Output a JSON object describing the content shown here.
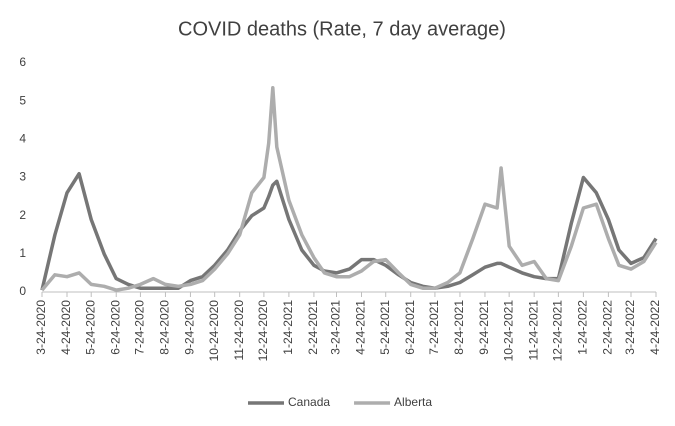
{
  "chart_data": {
    "type": "line",
    "title": "COVID deaths (Rate, 7 day average)",
    "x": [
      "3-24-2020",
      "4-9-2020",
      "4-24-2020",
      "5-9-2020",
      "5-24-2020",
      "6-9-2020",
      "6-24-2020",
      "7-9-2020",
      "7-24-2020",
      "8-9-2020",
      "8-24-2020",
      "9-9-2020",
      "9-24-2020",
      "10-9-2020",
      "10-24-2020",
      "11-9-2020",
      "11-24-2020",
      "12-9-2020",
      "12-24-2020",
      "12-30-2020",
      "1-4-2021",
      "1-9-2021",
      "1-24-2021",
      "2-9-2021",
      "2-24-2021",
      "3-9-2021",
      "3-24-2021",
      "4-9-2021",
      "4-24-2021",
      "5-9-2021",
      "5-24-2021",
      "6-9-2021",
      "6-24-2021",
      "7-9-2021",
      "7-24-2021",
      "8-9-2021",
      "8-24-2021",
      "9-9-2021",
      "9-24-2021",
      "10-9-2021",
      "10-14-2021",
      "10-24-2021",
      "11-9-2021",
      "11-24-2021",
      "12-9-2021",
      "12-24-2021",
      "1-9-2022",
      "1-24-2022",
      "2-9-2022",
      "2-24-2022",
      "3-9-2022",
      "3-24-2022",
      "4-9-2022",
      "4-24-2022"
    ],
    "series": [
      {
        "name": "Canada",
        "color": "#767676",
        "values": [
          0.05,
          1.5,
          2.6,
          3.1,
          1.9,
          1.0,
          0.35,
          0.2,
          0.1,
          0.1,
          0.1,
          0.1,
          0.3,
          0.4,
          0.7,
          1.1,
          1.6,
          2.0,
          2.2,
          2.5,
          2.8,
          2.9,
          1.9,
          1.1,
          0.7,
          0.55,
          0.5,
          0.6,
          0.85,
          0.85,
          0.7,
          0.45,
          0.25,
          0.15,
          0.1,
          0.15,
          0.25,
          0.45,
          0.65,
          0.75,
          0.75,
          0.65,
          0.5,
          0.4,
          0.35,
          0.35,
          1.8,
          3.0,
          2.6,
          1.9,
          1.1,
          0.75,
          0.9,
          1.4
        ]
      },
      {
        "name": "Alberta",
        "color": "#adadad",
        "values": [
          0.05,
          0.45,
          0.4,
          0.5,
          0.2,
          0.15,
          0.05,
          0.1,
          0.2,
          0.35,
          0.2,
          0.15,
          0.2,
          0.3,
          0.6,
          1.0,
          1.5,
          2.6,
          3.0,
          3.9,
          5.35,
          3.8,
          2.4,
          1.5,
          0.9,
          0.5,
          0.4,
          0.4,
          0.55,
          0.8,
          0.85,
          0.5,
          0.2,
          0.1,
          0.1,
          0.25,
          0.5,
          1.4,
          2.3,
          2.2,
          3.25,
          1.2,
          0.7,
          0.8,
          0.35,
          0.3,
          1.2,
          2.2,
          2.3,
          1.4,
          0.7,
          0.6,
          0.8,
          1.3
        ]
      }
    ],
    "xlim": [
      "3-24-2020",
      "4-24-2022"
    ],
    "xticks": [
      "3-24-2020",
      "4-24-2020",
      "5-24-2020",
      "6-24-2020",
      "7-24-2020",
      "8-24-2020",
      "9-24-2020",
      "10-24-2020",
      "11-24-2020",
      "12-24-2020",
      "1-24-2021",
      "2-24-2021",
      "3-24-2021",
      "4-24-2021",
      "5-24-2021",
      "6-24-2021",
      "7-24-2021",
      "8-24-2021",
      "9-24-2021",
      "10-24-2021",
      "11-24-2021",
      "12-24-2021",
      "1-24-2022",
      "2-24-2022",
      "3-24-2022",
      "4-24-2022"
    ],
    "ylim": [
      0,
      6
    ],
    "yticks": [
      0,
      1,
      2,
      3,
      4,
      5,
      6
    ],
    "grid": false,
    "legend": "bottom"
  }
}
